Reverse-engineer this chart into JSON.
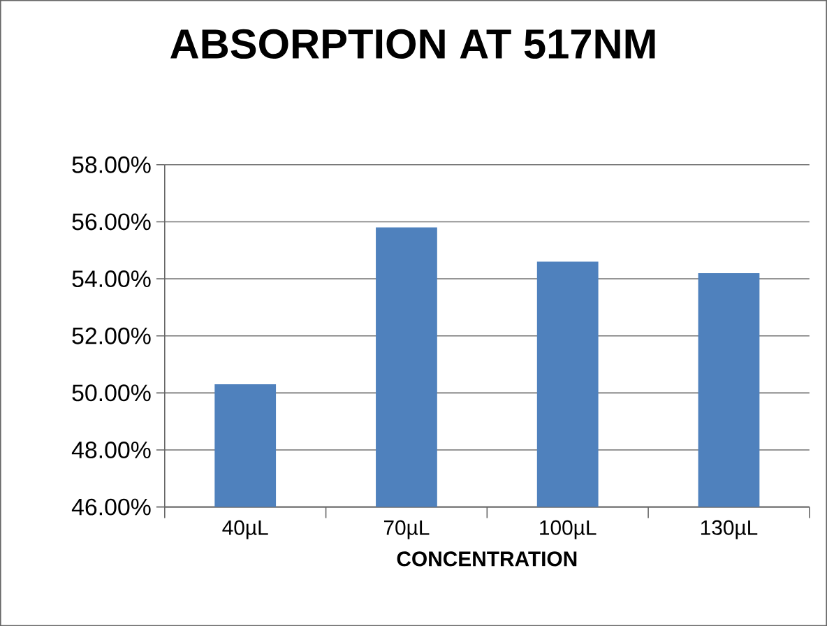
{
  "chart_data": {
    "type": "bar",
    "title": "ABSORPTION AT 517NM",
    "xlabel": "CONCENTRATION",
    "categories": [
      "40µL",
      "70µL",
      "100µL",
      "130µL"
    ],
    "values": [
      50.3,
      55.8,
      54.6,
      54.2
    ],
    "color": "#4f81bd",
    "ylim": [
      46,
      58
    ],
    "yticks": [
      {
        "value": 46,
        "label": "46.00%"
      },
      {
        "value": 48,
        "label": "48.00%"
      },
      {
        "value": 50,
        "label": "50.00%"
      },
      {
        "value": 52,
        "label": "52.00%"
      },
      {
        "value": 54,
        "label": "54.00%"
      },
      {
        "value": 56,
        "label": "56.00%"
      },
      {
        "value": 58,
        "label": "58.00%"
      }
    ],
    "grid": "y"
  }
}
